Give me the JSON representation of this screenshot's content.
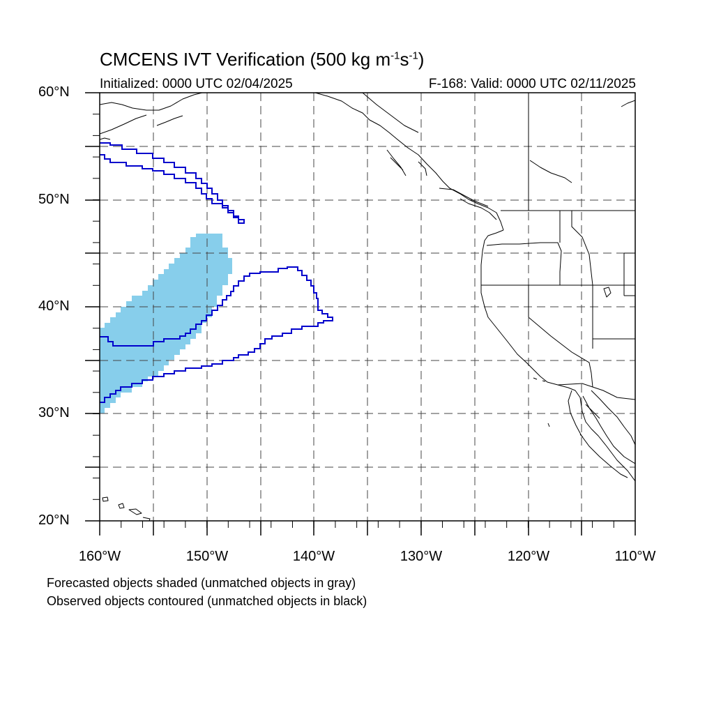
{
  "title": {
    "main": "CMCENS IVT Verification (500 kg m",
    "exp1": "-1",
    "mid": "s",
    "exp2": "-1",
    "close": ")"
  },
  "subtitle_left": "Initialized: 0000 UTC 02/04/2025",
  "subtitle_right": "F-168: Valid: 0000 UTC 02/11/2025",
  "lat_labels": [
    "60°N",
    "50°N",
    "40°N",
    "30°N",
    "20°N"
  ],
  "lon_labels": [
    "160°W",
    "150°W",
    "140°W",
    "130°W",
    "120°W",
    "110°W"
  ],
  "caption_line1": "Forecasted objects shaded (unmatched objects in gray)",
  "caption_line2": "Observed objects contoured (unmatched objects in black)",
  "colors": {
    "forecast_fill": "#87ceeb",
    "observed_contour": "#0000cc",
    "coastline": "#000000",
    "grid": "#444444"
  }
}
